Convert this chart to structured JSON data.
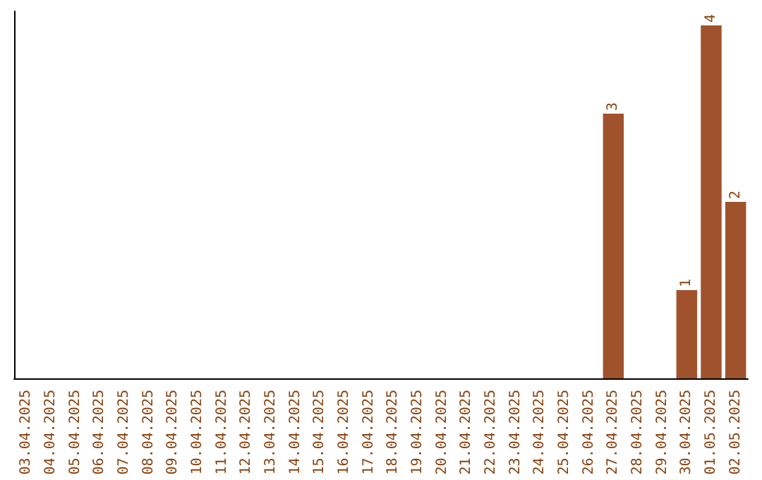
{
  "chart_data": {
    "type": "bar",
    "categories": [
      "03.04.2025",
      "04.04.2025",
      "05.04.2025",
      "06.04.2025",
      "07.04.2025",
      "08.04.2025",
      "09.04.2025",
      "10.04.2025",
      "11.04.2025",
      "12.04.2025",
      "13.04.2025",
      "14.04.2025",
      "15.04.2025",
      "16.04.2025",
      "17.04.2025",
      "18.04.2025",
      "19.04.2025",
      "20.04.2025",
      "21.04.2025",
      "22.04.2025",
      "23.04.2025",
      "24.04.2025",
      "25.04.2025",
      "26.04.2025",
      "27.04.2025",
      "28.04.2025",
      "29.04.2025",
      "30.04.2025",
      "01.05.2025",
      "02.05.2025"
    ],
    "values": [
      null,
      null,
      null,
      null,
      null,
      null,
      null,
      null,
      null,
      null,
      null,
      null,
      null,
      null,
      null,
      null,
      null,
      null,
      null,
      null,
      null,
      null,
      null,
      null,
      3,
      null,
      null,
      1,
      4,
      2
    ],
    "data_labels": true,
    "color": "#a0522d",
    "tick_labels": "x",
    "grid": false
  }
}
